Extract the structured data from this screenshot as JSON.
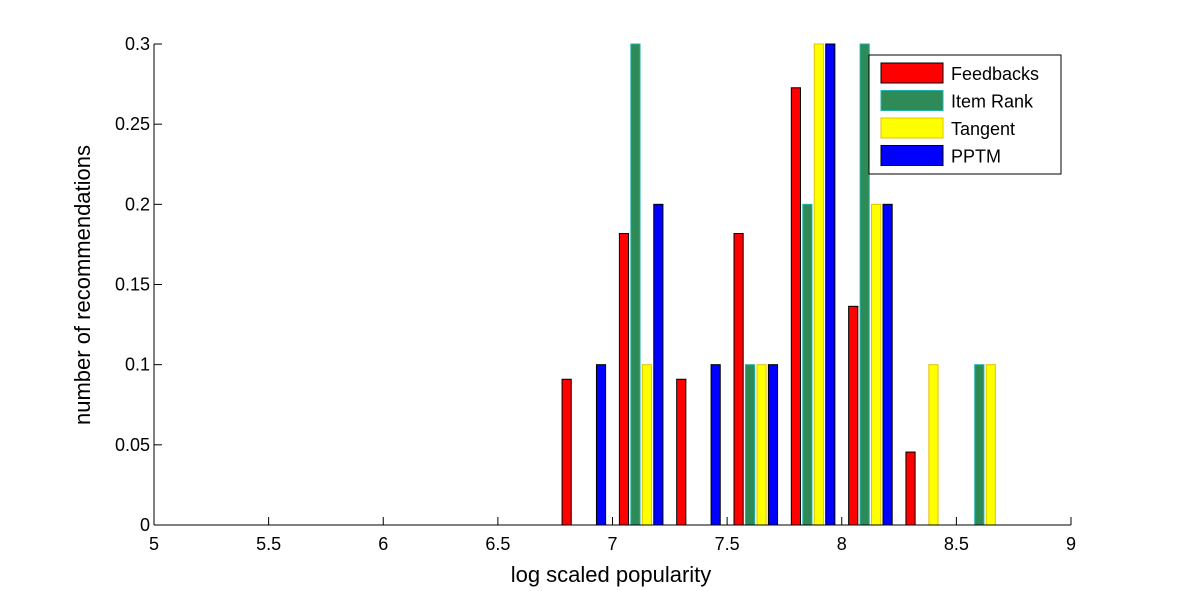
{
  "chart_data": {
    "type": "bar",
    "xlabel": "log scaled popularity",
    "ylabel": "number of recommendations",
    "xlim": [
      5,
      9
    ],
    "ylim": [
      0,
      0.3
    ],
    "x_ticks": [
      "5",
      "5.5",
      "6",
      "6.5",
      "7",
      "7.5",
      "8",
      "8.5",
      "9"
    ],
    "y_ticks": [
      "0",
      "0.05",
      "0.1",
      "0.15",
      "0.2",
      "0.25",
      "0.3"
    ],
    "legend_position": "top-right",
    "bin_centers": [
      5.125,
      5.375,
      5.625,
      5.875,
      6.125,
      6.375,
      6.625,
      6.875,
      7.125,
      7.375,
      7.625,
      7.875,
      8.125,
      8.375,
      8.625,
      8.875
    ],
    "series": [
      {
        "name": "Feedbacks",
        "color": "#ff0000",
        "edge": "#000000",
        "values": [
          0,
          0,
          0,
          0,
          0,
          0,
          0,
          0.0909,
          0.1818,
          0.0909,
          0.1818,
          0.2727,
          0.1364,
          0.0455,
          0,
          0
        ]
      },
      {
        "name": "Item Rank",
        "color": "#2e8b57",
        "edge": "#20b2aa",
        "values": [
          0,
          0,
          0,
          0,
          0,
          0,
          0,
          0,
          0.3,
          0,
          0.1,
          0.2,
          0.3,
          0,
          0.1,
          0
        ]
      },
      {
        "name": "Tangent",
        "color": "#ffff00",
        "edge": "#e6c200",
        "values": [
          0,
          0,
          0,
          0,
          0,
          0,
          0,
          0,
          0.1,
          0,
          0.1,
          0.3,
          0.2,
          0.1,
          0.1,
          0
        ]
      },
      {
        "name": "PPTM",
        "color": "#0000ff",
        "edge": "#000000",
        "values": [
          0,
          0,
          0,
          0,
          0,
          0,
          0,
          0.1,
          0.2,
          0.1,
          0.1,
          0.3,
          0.2,
          0,
          0,
          0
        ]
      }
    ]
  }
}
